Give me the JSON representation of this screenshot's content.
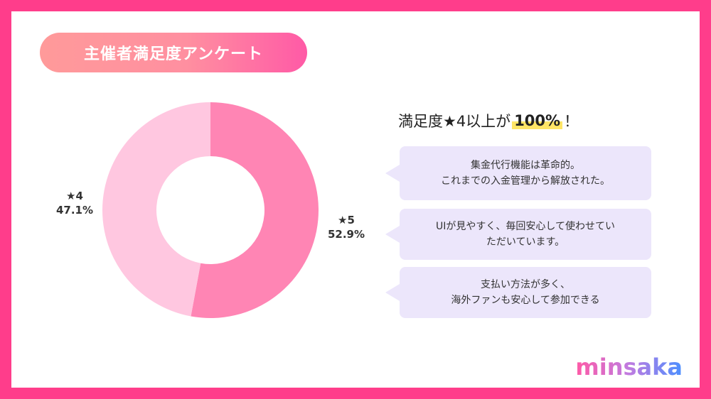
{
  "title": "主催者満足度アンケート",
  "headline": {
    "prefix": "満足度★4以上が",
    "highlight": "100%",
    "suffix": "！"
  },
  "chart_data": {
    "type": "pie",
    "categories": [
      "★5",
      "★4"
    ],
    "values": [
      52.9,
      47.1
    ],
    "value_labels": [
      "52.9%",
      "47.1%"
    ],
    "colors": [
      "#ff85b4",
      "#ffc7e0"
    ],
    "donut": true,
    "start": "12 o'clock, clockwise"
  },
  "comments": [
    {
      "lines": [
        "集金代行機能は革命的。",
        "これまでの入金管理から解放された。"
      ]
    },
    {
      "lines": [
        "UIが見やすく、毎回安心して使わせてい",
        "ただいています。"
      ]
    },
    {
      "lines": [
        "支払い方法が多く、",
        "海外ファンも安心して参加できる"
      ]
    }
  ],
  "brand": "minsaka",
  "colors": {
    "frame": "#ff3d8b",
    "bubble": "#ece6fb",
    "highlight": "#ffe566"
  }
}
